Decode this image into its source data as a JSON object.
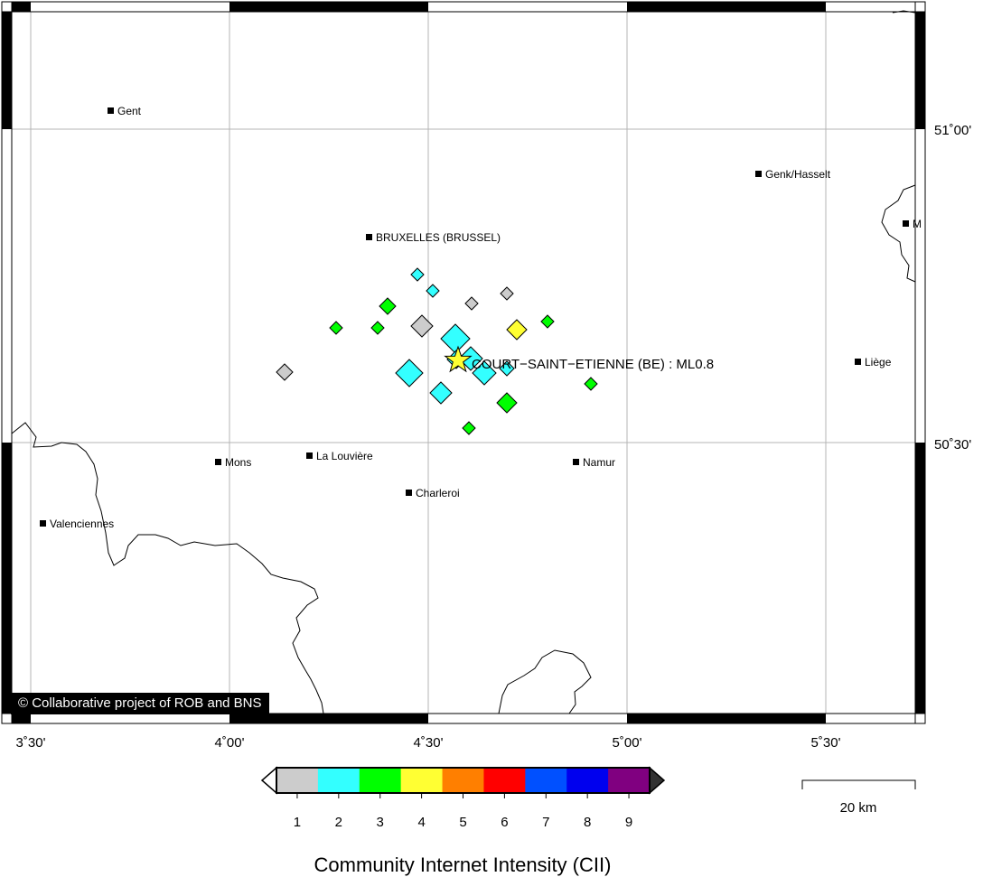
{
  "map": {
    "event_label": "COURT−SAINT−ETIENNE (BE) : ML0.8",
    "copyright": "© Collaborative project of ROB and BNS",
    "lon_labels": [
      "3˚30'",
      "4˚00'",
      "4˚30'",
      "5˚00'",
      "5˚30'"
    ],
    "lat_labels": [
      "51˚00'",
      "50˚30'"
    ],
    "cities": [
      {
        "name": "Gent"
      },
      {
        "name": "Genk/Hasselt"
      },
      {
        "name": "BRUXELLES (BRUSSEL)"
      },
      {
        "name": "Liège"
      },
      {
        "name": "Mons"
      },
      {
        "name": "La Louvière"
      },
      {
        "name": "Namur"
      },
      {
        "name": "Charleroi"
      },
      {
        "name": "Valenciennes"
      },
      {
        "name": "M"
      }
    ]
  },
  "scale_bar": {
    "label": "20 km"
  },
  "legend": {
    "title": "Community Internet Intensity (CII)",
    "levels": [
      {
        "label": "1",
        "color": "#cccccc"
      },
      {
        "label": "2",
        "color": "#33ffff"
      },
      {
        "label": "3",
        "color": "#00ff00"
      },
      {
        "label": "4",
        "color": "#ffff33"
      },
      {
        "label": "5",
        "color": "#ff7f00"
      },
      {
        "label": "6",
        "color": "#ff0000"
      },
      {
        "label": "7",
        "color": "#0050ff"
      },
      {
        "label": "8",
        "color": "#0000ee"
      },
      {
        "label": "9",
        "color": "#800080"
      }
    ]
  },
  "markers": [
    {
      "cii": 2
    },
    {
      "cii": 2
    },
    {
      "cii": 1
    },
    {
      "cii": 1
    },
    {
      "cii": 3
    },
    {
      "cii": 3
    },
    {
      "cii": 3
    },
    {
      "cii": 1
    },
    {
      "cii": 2
    },
    {
      "cii": 4
    },
    {
      "cii": 3
    },
    {
      "cii": 2
    },
    {
      "cii": 2
    },
    {
      "cii": 2
    },
    {
      "cii": 2
    },
    {
      "cii": 2
    },
    {
      "cii": 1
    },
    {
      "cii": 2
    },
    {
      "cii": 3
    },
    {
      "cii": 3
    },
    {
      "cii": 3
    }
  ]
}
